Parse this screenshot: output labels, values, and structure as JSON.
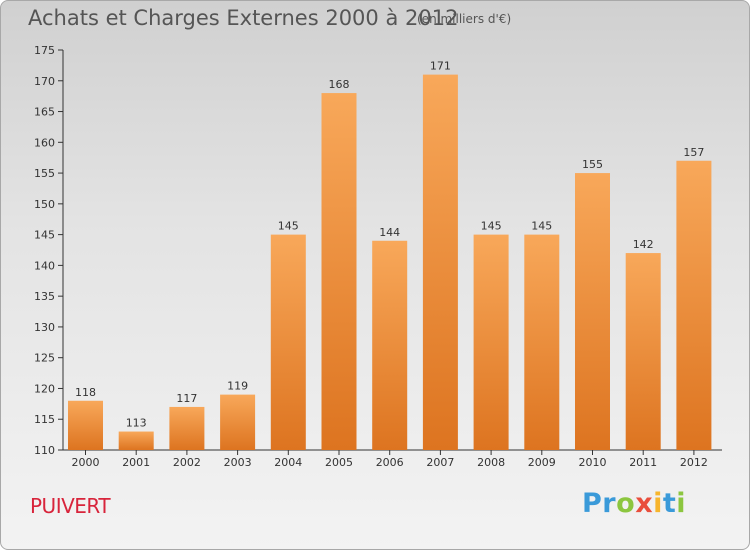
{
  "header": {
    "title": "Achats et Charges Externes 2000 à 2012",
    "subtitle": "(en milliers d'€)"
  },
  "footer": {
    "town": "PUIVERT",
    "logo_letters": [
      {
        "char": "P",
        "color": "#3a9ad9"
      },
      {
        "char": "r",
        "color": "#3a9ad9"
      },
      {
        "char": "o",
        "color": "#8cc63f"
      },
      {
        "char": "x",
        "color": "#e94e3c"
      },
      {
        "char": "i",
        "color": "#f7b52c"
      },
      {
        "char": "t",
        "color": "#3a9ad9"
      },
      {
        "char": "i",
        "color": "#8cc63f"
      }
    ]
  },
  "colors": {
    "bar_top": "#f8a85a",
    "bar_bottom": "#dd7420",
    "axis": "#333333",
    "text": "#333333"
  },
  "chart_data": {
    "type": "bar",
    "categories": [
      "2000",
      "2001",
      "2002",
      "2003",
      "2004",
      "2005",
      "2006",
      "2007",
      "2008",
      "2009",
      "2010",
      "2011",
      "2012"
    ],
    "values": [
      118,
      113,
      117,
      119,
      145,
      168,
      144,
      171,
      145,
      145,
      155,
      142,
      157
    ],
    "data_labels": [
      "118",
      "113",
      "117",
      "119",
      "145",
      "168",
      "144",
      "171",
      "145",
      "145",
      "155",
      "142",
      "157"
    ],
    "yticks": [
      "110",
      "115",
      "120",
      "125",
      "130",
      "135",
      "140",
      "145",
      "150",
      "155",
      "160",
      "165",
      "170",
      "175"
    ],
    "ylim": [
      110,
      175
    ],
    "grid": false,
    "title": "Achats et Charges Externes 2000 à 2012",
    "subtitle": "(en milliers d'€)"
  }
}
